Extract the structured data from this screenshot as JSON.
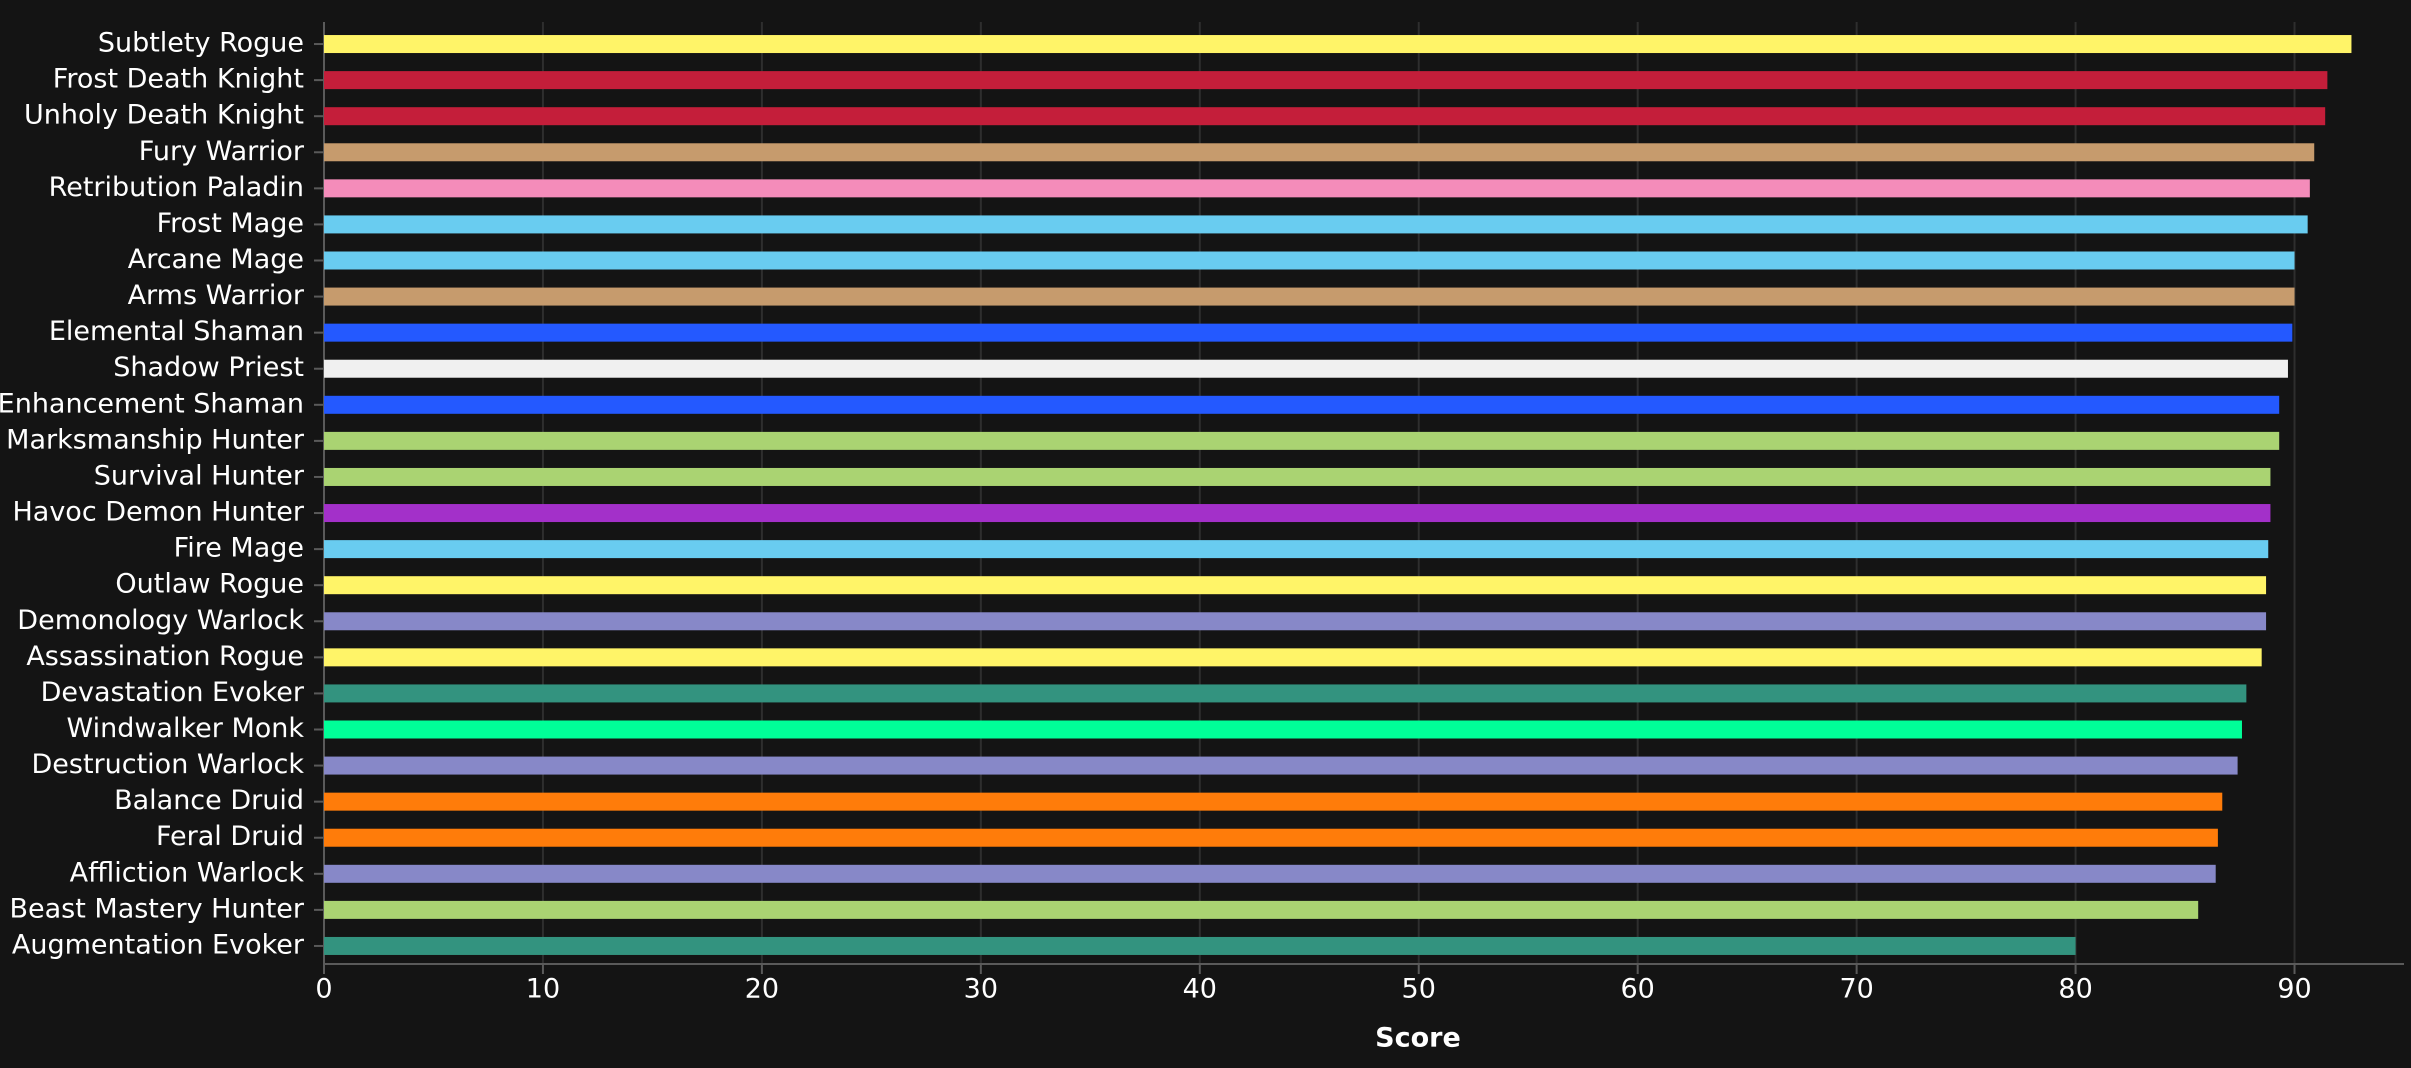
{
  "chart_data": {
    "type": "hbar",
    "x_label": "Score",
    "categories": [
      "Subtlety Rogue",
      "Frost Death Knight",
      "Unholy Death Knight",
      "Fury Warrior",
      "Retribution Paladin",
      "Frost Mage",
      "Arcane Mage",
      "Arms Warrior",
      "Elemental Shaman",
      "Shadow Priest",
      "Enhancement Shaman",
      "Marksmanship Hunter",
      "Survival Hunter",
      "Havoc Demon Hunter",
      "Fire Mage",
      "Outlaw Rogue",
      "Demonology Warlock",
      "Assassination Rogue",
      "Devastation Evoker",
      "Windwalker Monk",
      "Destruction Warlock",
      "Balance Druid",
      "Feral Druid",
      "Affliction Warlock",
      "Beast Mastery Hunter",
      "Augmentation Evoker"
    ],
    "values": [
      92.6,
      91.5,
      91.4,
      90.9,
      90.7,
      90.6,
      90.0,
      90.0,
      89.9,
      89.7,
      89.3,
      89.3,
      88.9,
      88.9,
      88.8,
      88.7,
      88.7,
      88.5,
      87.8,
      87.6,
      87.4,
      86.7,
      86.5,
      86.4,
      85.6,
      80.0
    ],
    "colors": [
      "#fff468",
      "#c41e3a",
      "#c41e3a",
      "#c69b6d",
      "#f48cba",
      "#69ccf0",
      "#69ccf0",
      "#c69b6d",
      "#2459ff",
      "#f0f0f0",
      "#2459ff",
      "#aad372",
      "#aad372",
      "#a330c9",
      "#69ccf0",
      "#fff468",
      "#8788c8",
      "#fff468",
      "#33937f",
      "#00ff98",
      "#8788c8",
      "#ff7c0a",
      "#ff7c0a",
      "#8788c8",
      "#aad372",
      "#33937f"
    ],
    "xlim": [
      0,
      95
    ],
    "xticks": [
      0,
      10,
      20,
      30,
      40,
      50,
      60,
      70,
      80,
      90
    ],
    "grid": true
  }
}
